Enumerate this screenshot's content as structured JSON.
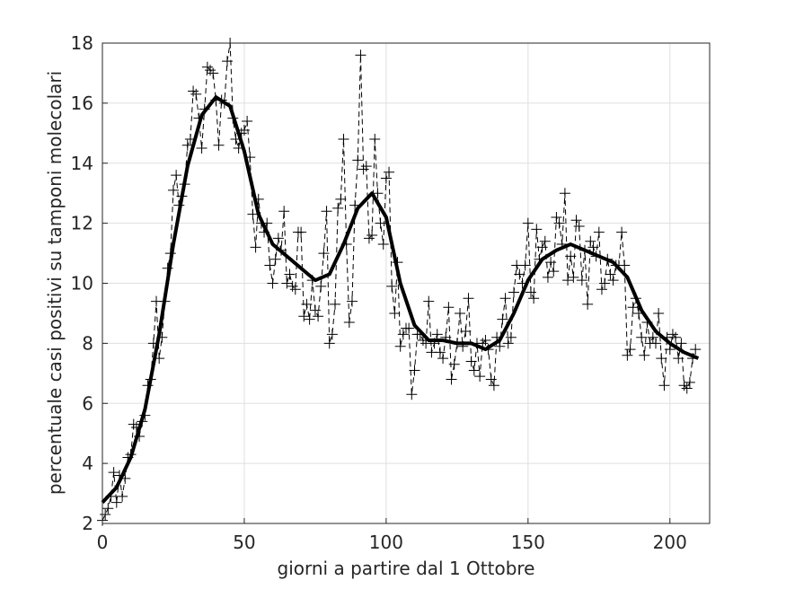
{
  "chart_data": {
    "type": "line",
    "xlabel": "giorni a partire dal 1 Ottobre",
    "ylabel": "percentuale casi positivi su tamponi molecolari",
    "xlim": [
      0,
      214
    ],
    "ylim": [
      2,
      18
    ],
    "xticks": [
      0,
      50,
      100,
      150,
      200
    ],
    "yticks": [
      2,
      4,
      6,
      8,
      10,
      12,
      14,
      16,
      18
    ],
    "grid": true,
    "series": [
      {
        "color": "#000000",
        "linestyle": "dashed",
        "linewidth": 1,
        "marker": "+",
        "x": [
          0,
          1,
          2,
          3,
          4,
          5,
          6,
          7,
          8,
          9,
          10,
          11,
          12,
          13,
          14,
          15,
          16,
          17,
          18,
          19,
          20,
          21,
          22,
          23,
          24,
          25,
          26,
          27,
          28,
          29,
          30,
          31,
          32,
          33,
          34,
          35,
          36,
          37,
          38,
          39,
          40,
          41,
          42,
          43,
          44,
          45,
          46,
          47,
          48,
          49,
          50,
          51,
          52,
          53,
          54,
          55,
          56,
          57,
          58,
          59,
          60,
          61,
          62,
          63,
          64,
          65,
          66,
          67,
          68,
          69,
          70,
          71,
          72,
          73,
          74,
          75,
          76,
          77,
          78,
          79,
          80,
          81,
          82,
          83,
          84,
          85,
          86,
          87,
          88,
          89,
          90,
          91,
          92,
          93,
          94,
          95,
          96,
          97,
          98,
          99,
          100,
          101,
          102,
          103,
          104,
          105,
          106,
          107,
          108,
          109,
          110,
          111,
          112,
          113,
          114,
          115,
          116,
          117,
          118,
          119,
          120,
          121,
          122,
          123,
          124,
          125,
          126,
          127,
          128,
          129,
          130,
          131,
          132,
          133,
          134,
          135,
          136,
          137,
          138,
          139,
          140,
          141,
          142,
          143,
          144,
          145,
          146,
          147,
          148,
          149,
          150,
          151,
          152,
          153,
          154,
          155,
          156,
          157,
          158,
          159,
          160,
          161,
          162,
          163,
          164,
          165,
          166,
          167,
          168,
          169,
          170,
          171,
          172,
          173,
          174,
          175,
          176,
          177,
          178,
          179,
          180,
          181,
          182,
          183,
          184,
          185,
          186,
          187,
          188,
          189,
          190,
          191,
          192,
          193,
          194,
          195,
          196,
          197,
          198,
          199,
          200,
          201,
          202,
          203,
          204,
          205,
          206,
          207,
          208,
          209
        ],
        "values": [
          2.1,
          2.3,
          2.5,
          2.9,
          3.7,
          2.7,
          3.6,
          2.9,
          3.5,
          4.2,
          4.3,
          5.3,
          5.2,
          4.9,
          5.4,
          5.6,
          6.6,
          6.8,
          8.0,
          9.4,
          7.5,
          8.2,
          9.4,
          10.5,
          11.0,
          13.1,
          13.6,
          12.6,
          12.9,
          13.3,
          14.6,
          14.8,
          16.4,
          16.3,
          15.5,
          14.5,
          15.8,
          17.2,
          17.1,
          17.0,
          16.1,
          14.6,
          16.1,
          16.0,
          17.4,
          18.0,
          15.5,
          14.8,
          14.5,
          15.0,
          15.1,
          15.4,
          14.2,
          12.3,
          11.2,
          12.8,
          12.0,
          11.7,
          12.0,
          10.6,
          10.0,
          10.8,
          11.5,
          11.1,
          12.4,
          10.0,
          10.3,
          9.9,
          9.8,
          11.7,
          11.7,
          8.9,
          9.3,
          8.8,
          10.1,
          9.1,
          8.9,
          9.9,
          11.0,
          12.4,
          8.0,
          8.3,
          9.3,
          12.5,
          12.8,
          14.8,
          11.3,
          8.7,
          9.4,
          12.6,
          14.1,
          17.6,
          13.8,
          13.9,
          11.5,
          11.6,
          14.8,
          13.0,
          12.0,
          11.3,
          13.5,
          13.7,
          9.9,
          9.0,
          10.7,
          7.9,
          8.3,
          8.5,
          8.5,
          6.3,
          7.1,
          8.3,
          8.3,
          8.1,
          8.0,
          9.4,
          7.7,
          8.0,
          8.3,
          7.7,
          7.5,
          8.2,
          9.2,
          6.8,
          7.3,
          8.0,
          9.0,
          7.9,
          8.4,
          9.5,
          7.4,
          7.1,
          8.0,
          6.9,
          8.0,
          8.1,
          7.8,
          6.8,
          6.6,
          8.2,
          7.9,
          8.8,
          9.5,
          8.0,
          8.2,
          9.7,
          10.6,
          10.3,
          10.0,
          10.6,
          12.0,
          9.7,
          9.5,
          11.8,
          10.8,
          11.2,
          11.4,
          10.2,
          10.7,
          10.4,
          12.2,
          12.0,
          11.3,
          13.0,
          10.1,
          10.9,
          10.2,
          12.1,
          11.9,
          10.1,
          11.1,
          9.3,
          11.4,
          11.2,
          10.9,
          11.7,
          9.8,
          10.0,
          10.8,
          10.3,
          10.1,
          10.6,
          10.6,
          11.7,
          10.6,
          7.6,
          7.8,
          9.2,
          9.5,
          9.0,
          8.2,
          7.6,
          8.7,
          8.0,
          8.2,
          8.0,
          9.0,
          7.5,
          6.6,
          8.2,
          7.8,
          8.3,
          8.2,
          7.5,
          8.0,
          6.6,
          6.5,
          6.7,
          7.5,
          7.8
        ]
      },
      {
        "color": "#000000",
        "linestyle": "solid",
        "linewidth": 4,
        "x": [
          0,
          5,
          10,
          15,
          20,
          25,
          30,
          35,
          40,
          45,
          50,
          55,
          60,
          65,
          70,
          75,
          80,
          85,
          90,
          95,
          100,
          105,
          110,
          115,
          120,
          125,
          130,
          135,
          140,
          145,
          150,
          155,
          160,
          165,
          170,
          175,
          180,
          185,
          190,
          195,
          200,
          205,
          210
        ],
        "values": [
          2.7,
          3.2,
          4.2,
          5.8,
          8.3,
          11.3,
          13.9,
          15.6,
          16.2,
          15.9,
          14.4,
          12.3,
          11.3,
          10.9,
          10.5,
          10.1,
          10.3,
          11.3,
          12.5,
          13.0,
          12.2,
          10.0,
          8.6,
          8.1,
          8.1,
          8.0,
          8.0,
          7.8,
          8.1,
          9.0,
          10.1,
          10.8,
          11.1,
          11.3,
          11.1,
          10.9,
          10.7,
          10.2,
          9.1,
          8.4,
          8.0,
          7.7,
          7.5
        ]
      }
    ]
  }
}
